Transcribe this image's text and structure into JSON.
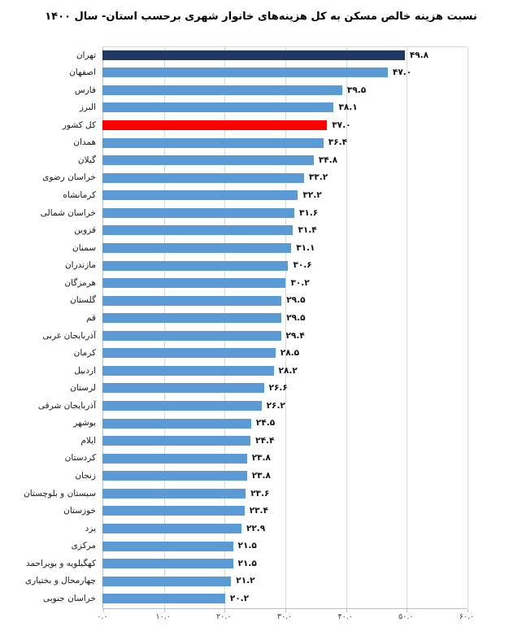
{
  "colors": {
    "bar_default": "#5B9BD5",
    "bar_top_highlight": "#1F3864",
    "bar_national_highlight": "#FF0000",
    "gridline": "#D9D9D9"
  },
  "chart_data": {
    "type": "bar",
    "orientation": "horizontal",
    "title": "نسبت هزینه خالص مسکن به کل هزینه‌های خانوار شهری برحسب استان- سال ۱۴۰۰",
    "xlabel": "",
    "ylabel": "",
    "xlim": [
      0,
      60
    ],
    "grid": true,
    "legend": false,
    "x_tick_values": [
      0,
      10,
      20,
      30,
      40,
      50,
      60
    ],
    "x_tick_labels": [
      "۰.۰",
      "۱۰.۰",
      "۲۰.۰",
      "۳۰.۰",
      "۴۰.۰",
      "۵۰.۰",
      "۶۰.۰"
    ],
    "series": [
      {
        "label": "تهران",
        "value": 49.8,
        "display": "۴۹.۸",
        "color": "#1F3864"
      },
      {
        "label": "اصفهان",
        "value": 47.0,
        "display": "۴۷.۰"
      },
      {
        "label": "فارس",
        "value": 39.5,
        "display": "۳۹.۵"
      },
      {
        "label": "البرز",
        "value": 38.1,
        "display": "۳۸.۱"
      },
      {
        "label": "کل کشور",
        "value": 37.0,
        "display": "۳۷.۰",
        "color": "#FF0000"
      },
      {
        "label": "همدان",
        "value": 36.4,
        "display": "۳۶.۴"
      },
      {
        "label": "گیلان",
        "value": 34.8,
        "display": "۳۴.۸"
      },
      {
        "label": "خراسان رضوی",
        "value": 33.2,
        "display": "۳۳.۲"
      },
      {
        "label": "کرمانشاه",
        "value": 32.2,
        "display": "۳۲.۲"
      },
      {
        "label": "خراسان شمالی",
        "value": 31.6,
        "display": "۳۱.۶"
      },
      {
        "label": "قزوین",
        "value": 31.4,
        "display": "۳۱.۴"
      },
      {
        "label": "سمنان",
        "value": 31.1,
        "display": "۳۱.۱"
      },
      {
        "label": "مازندران",
        "value": 30.6,
        "display": "۳۰.۶"
      },
      {
        "label": "هرمزگان",
        "value": 30.2,
        "display": "۳۰.۲"
      },
      {
        "label": "گلستان",
        "value": 29.5,
        "display": "۲۹.۵"
      },
      {
        "label": "قم",
        "value": 29.5,
        "display": "۲۹.۵"
      },
      {
        "label": "آذربایجان غربی",
        "value": 29.4,
        "display": "۲۹.۴"
      },
      {
        "label": "کرمان",
        "value": 28.5,
        "display": "۲۸.۵"
      },
      {
        "label": "اردبیل",
        "value": 28.2,
        "display": "۲۸.۲"
      },
      {
        "label": "لرستان",
        "value": 26.6,
        "display": "۲۶.۶"
      },
      {
        "label": "آذربایجان شرقی",
        "value": 26.2,
        "display": "۲۶.۲"
      },
      {
        "label": "بوشهر",
        "value": 24.5,
        "display": "۲۴.۵"
      },
      {
        "label": "ایلام",
        "value": 24.4,
        "display": "۲۴.۴"
      },
      {
        "label": "کردستان",
        "value": 23.8,
        "display": "۲۳.۸"
      },
      {
        "label": "زنجان",
        "value": 23.8,
        "display": "۲۳.۸"
      },
      {
        "label": "سیستان و بلوچستان",
        "value": 23.6,
        "display": "۲۳.۶"
      },
      {
        "label": "خوزستان",
        "value": 23.4,
        "display": "۲۳.۴"
      },
      {
        "label": "یزد",
        "value": 22.9,
        "display": "۲۲.۹"
      },
      {
        "label": "مرکزی",
        "value": 21.5,
        "display": "۲۱.۵"
      },
      {
        "label": "کهگیلویه و بویراحمد",
        "value": 21.5,
        "display": "۲۱.۵"
      },
      {
        "label": "چهارمحال و بختیاری",
        "value": 21.2,
        "display": "۲۱.۲"
      },
      {
        "label": "خراسان جنوبی",
        "value": 20.2,
        "display": "۲۰.۲"
      }
    ]
  }
}
